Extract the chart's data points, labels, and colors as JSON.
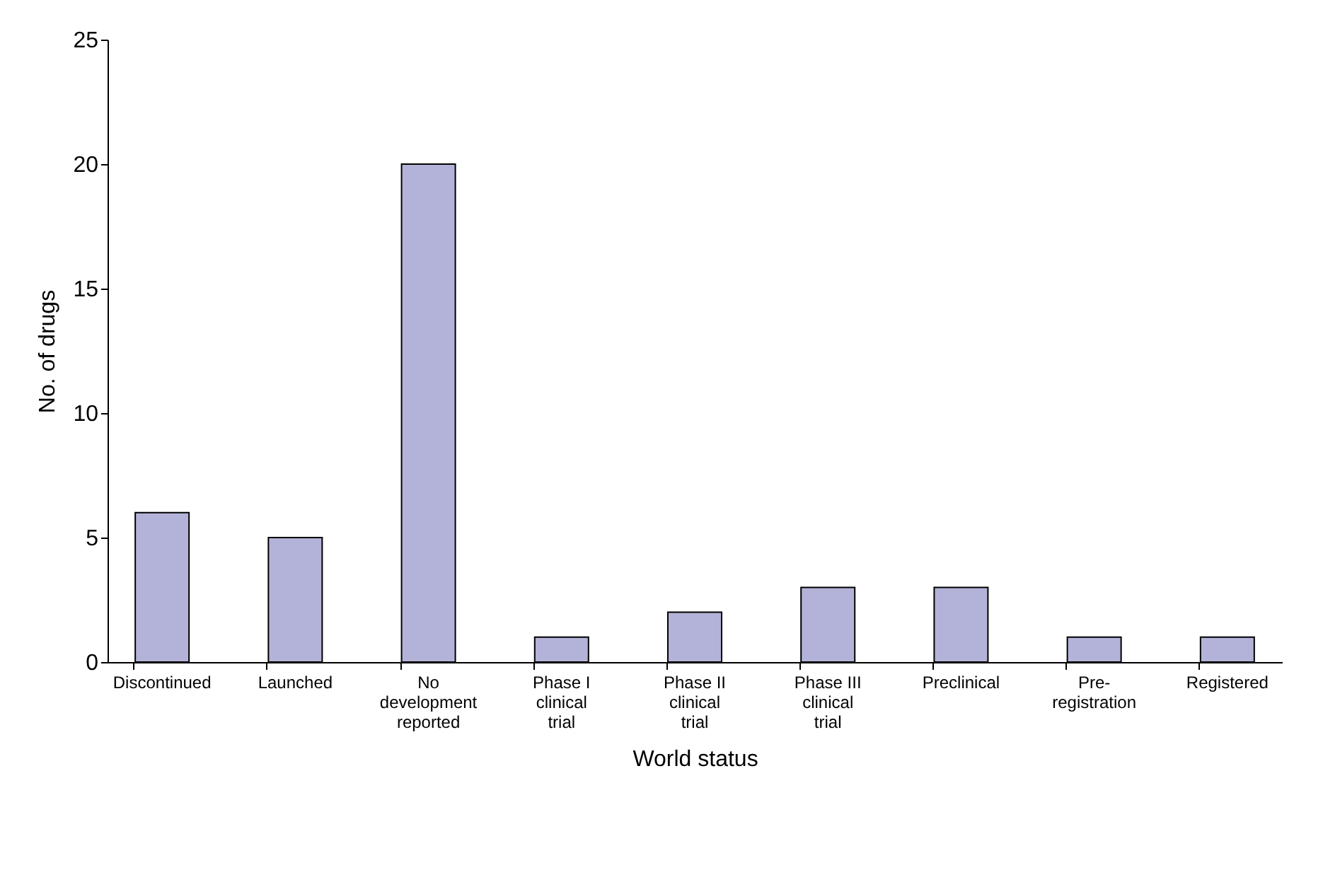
{
  "chart_data": {
    "type": "bar",
    "xlabel": "World status",
    "ylabel": "No. of drugs",
    "categories": [
      "Discontinued",
      "Launched",
      "No development reported",
      "Phase I clinical trial",
      "Phase II clinical trial",
      "Phase III clinical trial",
      "Preclinical",
      "Pre-registration",
      "Registered"
    ],
    "values": [
      6,
      5,
      20,
      1,
      2,
      3,
      3,
      1,
      1
    ],
    "color": "#b3b3d9",
    "ylim": [
      0,
      25
    ],
    "yticks": [
      0,
      5,
      10,
      15,
      20,
      25
    ],
    "grid": false
  }
}
